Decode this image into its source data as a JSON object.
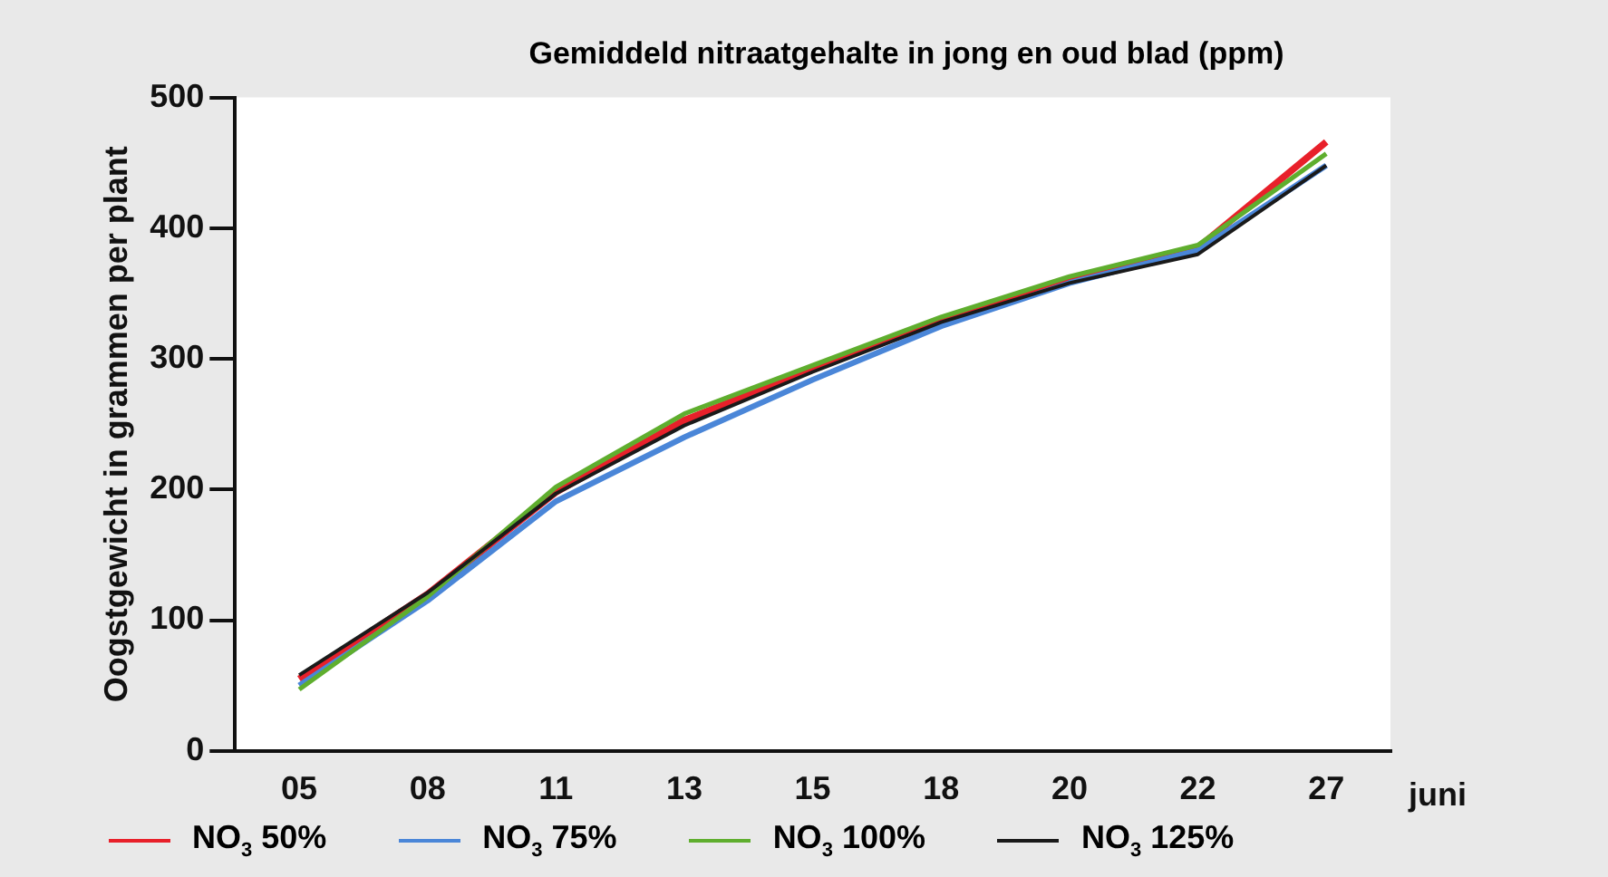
{
  "chart_data": {
    "type": "line",
    "title": "Gemiddeld nitraatgehalte in jong en oud blad (ppm)",
    "ylabel": "Oogstgewicht in grammen per plant",
    "xlabel": "juni",
    "categories": [
      "05",
      "08",
      "11",
      "13",
      "15",
      "18",
      "20",
      "22",
      "27"
    ],
    "series": [
      {
        "name": "NO$_{3}$ 50%",
        "color": "#e8202a",
        "values": [
          55,
          120,
          198,
          253,
          292,
          330,
          360,
          385,
          466
        ]
      },
      {
        "name": "NO$_{3}$ 75%",
        "color": "#4a86d8",
        "values": [
          50,
          115,
          191,
          240,
          284,
          325,
          358,
          383,
          448
        ]
      },
      {
        "name": "NO$_{3}$ 100%",
        "color": "#5fae2e",
        "values": [
          47,
          118,
          202,
          258,
          295,
          332,
          363,
          387,
          457
        ]
      },
      {
        "name": "NO$_{3}$ 125%",
        "color": "#1a1a1a",
        "values": [
          58,
          121,
          197,
          249,
          290,
          328,
          358,
          380,
          448
        ]
      }
    ],
    "ylim": [
      0,
      500
    ],
    "yticks": [
      0,
      100,
      200,
      300,
      400,
      500
    ],
    "grid": false,
    "legend": "bottom",
    "marker": "none",
    "line_style": "solid"
  }
}
